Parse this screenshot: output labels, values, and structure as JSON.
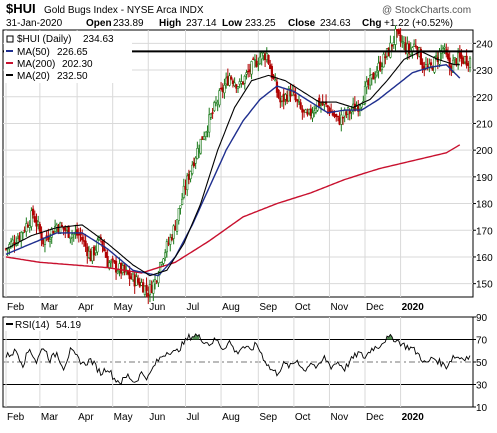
{
  "chart_data": {
    "type": "candlestick",
    "header": {
      "symbol": "$HUI",
      "name": "Gold Bugs Index - NYSE Arca INDX",
      "date": "31-Jan-2020",
      "open_label": "Open",
      "open": "233.89",
      "high_label": "High",
      "high": "237.14",
      "low_label": "Low",
      "low": "233.25",
      "close_label": "Close",
      "close": "234.63",
      "chg_label": "Chg",
      "chg": "+1.22 (+0.52%)",
      "credit": "@ StockCharts.com"
    },
    "legend": [
      {
        "label": "$HUI (Daily)",
        "value": "234.63",
        "color": "#000000",
        "marker": "box"
      },
      {
        "label": "MA(50)",
        "value": "226.65",
        "color": "#1f2f8f",
        "marker": "line"
      },
      {
        "label": "MA(200)",
        "value": "202.30",
        "color": "#c8102e",
        "marker": "line"
      },
      {
        "label": "MA(20)",
        "value": "232.50",
        "color": "#000000",
        "marker": "line"
      }
    ],
    "colors": {
      "up": "#1a7a1a",
      "down": "#b00000",
      "ma50": "#1f2f8f",
      "ma200": "#c8102e",
      "ma20": "#000000",
      "grid": "#d9d9d9",
      "rsi_fill": "#3a7d3a"
    },
    "price_axis": {
      "min": 145,
      "max": 245,
      "ticks": [
        150,
        160,
        170,
        180,
        190,
        200,
        210,
        220,
        230,
        240
      ]
    },
    "resistance_level": 237,
    "x_axis": {
      "total_days": 275,
      "months": [
        {
          "label": "Feb",
          "day": 0
        },
        {
          "label": "Mar",
          "day": 20
        },
        {
          "label": "Apr",
          "day": 42
        },
        {
          "label": "May",
          "day": 63
        },
        {
          "label": "Jun",
          "day": 84
        },
        {
          "label": "Jul",
          "day": 106
        },
        {
          "label": "Aug",
          "day": 127
        },
        {
          "label": "Sep",
          "day": 149
        },
        {
          "label": "Oct",
          "day": 170
        },
        {
          "label": "Nov",
          "day": 191
        },
        {
          "label": "Dec",
          "day": 212
        },
        {
          "label": "2020",
          "day": 233,
          "bold": true
        }
      ]
    },
    "close_path": [
      [
        0,
        163
      ],
      [
        8,
        168
      ],
      [
        16,
        176
      ],
      [
        22,
        166
      ],
      [
        30,
        172
      ],
      [
        38,
        169
      ],
      [
        44,
        168
      ],
      [
        50,
        160
      ],
      [
        56,
        167
      ],
      [
        60,
        158
      ],
      [
        68,
        155
      ],
      [
        74,
        152
      ],
      [
        80,
        150
      ],
      [
        84,
        147
      ],
      [
        88,
        151
      ],
      [
        92,
        160
      ],
      [
        96,
        165
      ],
      [
        100,
        172
      ],
      [
        104,
        182
      ],
      [
        110,
        195
      ],
      [
        116,
        205
      ],
      [
        120,
        211
      ],
      [
        126,
        220
      ],
      [
        132,
        228
      ],
      [
        138,
        224
      ],
      [
        144,
        230
      ],
      [
        150,
        235
      ],
      [
        154,
        236
      ],
      [
        158,
        226
      ],
      [
        162,
        218
      ],
      [
        168,
        222
      ],
      [
        174,
        215
      ],
      [
        178,
        212
      ],
      [
        184,
        218
      ],
      [
        190,
        216
      ],
      [
        196,
        211
      ],
      [
        202,
        214
      ],
      [
        208,
        217
      ],
      [
        212,
        222
      ],
      [
        218,
        229
      ],
      [
        226,
        237
      ],
      [
        230,
        243
      ],
      [
        234,
        240
      ],
      [
        238,
        237
      ],
      [
        242,
        240
      ],
      [
        246,
        232
      ],
      [
        250,
        230
      ],
      [
        254,
        234
      ],
      [
        258,
        238
      ],
      [
        262,
        231
      ],
      [
        266,
        234
      ],
      [
        268,
        234
      ]
    ],
    "ma50_path": [
      [
        0,
        161
      ],
      [
        15,
        165
      ],
      [
        30,
        169
      ],
      [
        45,
        169
      ],
      [
        60,
        163
      ],
      [
        75,
        155
      ],
      [
        90,
        153
      ],
      [
        100,
        160
      ],
      [
        110,
        172
      ],
      [
        120,
        186
      ],
      [
        130,
        200
      ],
      [
        140,
        211
      ],
      [
        150,
        219
      ],
      [
        160,
        224
      ],
      [
        170,
        222
      ],
      [
        180,
        218
      ],
      [
        190,
        214
      ],
      [
        200,
        215
      ],
      [
        210,
        215
      ],
      [
        220,
        219
      ],
      [
        230,
        224
      ],
      [
        240,
        229
      ],
      [
        250,
        231
      ],
      [
        260,
        232
      ],
      [
        268,
        227
      ]
    ],
    "ma200_path": [
      [
        0,
        160
      ],
      [
        20,
        158
      ],
      [
        40,
        157
      ],
      [
        60,
        156
      ],
      [
        80,
        154
      ],
      [
        100,
        158
      ],
      [
        120,
        166
      ],
      [
        140,
        175
      ],
      [
        160,
        180
      ],
      [
        180,
        184
      ],
      [
        200,
        189
      ],
      [
        220,
        193
      ],
      [
        240,
        196
      ],
      [
        260,
        199
      ],
      [
        268,
        202
      ]
    ],
    "ma20_path": [
      [
        0,
        163
      ],
      [
        15,
        168
      ],
      [
        30,
        171
      ],
      [
        45,
        172
      ],
      [
        60,
        165
      ],
      [
        75,
        157
      ],
      [
        85,
        153
      ],
      [
        95,
        155
      ],
      [
        105,
        165
      ],
      [
        115,
        180
      ],
      [
        125,
        200
      ],
      [
        135,
        216
      ],
      [
        145,
        226
      ],
      [
        155,
        228
      ],
      [
        165,
        226
      ],
      [
        175,
        222
      ],
      [
        185,
        218
      ],
      [
        195,
        218
      ],
      [
        205,
        216
      ],
      [
        215,
        219
      ],
      [
        225,
        226
      ],
      [
        235,
        234
      ],
      [
        245,
        237
      ],
      [
        255,
        234
      ],
      [
        265,
        232
      ],
      [
        268,
        232
      ]
    ],
    "rsi": {
      "label": "RSI(14)",
      "value": "54.19",
      "min": 10,
      "max": 90,
      "ticks": [
        10,
        30,
        50,
        70,
        90
      ],
      "overbought": 70,
      "oversold": 30,
      "mid": 50,
      "path": [
        [
          0,
          55
        ],
        [
          6,
          60
        ],
        [
          10,
          48
        ],
        [
          14,
          62
        ],
        [
          18,
          50
        ],
        [
          22,
          64
        ],
        [
          26,
          52
        ],
        [
          30,
          58
        ],
        [
          34,
          45
        ],
        [
          38,
          60
        ],
        [
          42,
          54
        ],
        [
          46,
          48
        ],
        [
          50,
          52
        ],
        [
          56,
          40
        ],
        [
          60,
          45
        ],
        [
          64,
          35
        ],
        [
          68,
          32
        ],
        [
          72,
          38
        ],
        [
          76,
          32
        ],
        [
          80,
          40
        ],
        [
          84,
          36
        ],
        [
          88,
          48
        ],
        [
          92,
          55
        ],
        [
          96,
          60
        ],
        [
          100,
          58
        ],
        [
          104,
          65
        ],
        [
          108,
          72
        ],
        [
          112,
          74
        ],
        [
          116,
          70
        ],
        [
          120,
          66
        ],
        [
          124,
          70
        ],
        [
          128,
          62
        ],
        [
          132,
          68
        ],
        [
          136,
          58
        ],
        [
          140,
          64
        ],
        [
          144,
          60
        ],
        [
          148,
          66
        ],
        [
          152,
          54
        ],
        [
          156,
          44
        ],
        [
          160,
          40
        ],
        [
          164,
          48
        ],
        [
          168,
          46
        ],
        [
          172,
          52
        ],
        [
          176,
          42
        ],
        [
          180,
          50
        ],
        [
          184,
          44
        ],
        [
          188,
          54
        ],
        [
          192,
          46
        ],
        [
          196,
          50
        ],
        [
          200,
          44
        ],
        [
          204,
          52
        ],
        [
          208,
          58
        ],
        [
          212,
          54
        ],
        [
          216,
          62
        ],
        [
          220,
          64
        ],
        [
          224,
          70
        ],
        [
          228,
          72
        ],
        [
          232,
          68
        ],
        [
          236,
          64
        ],
        [
          240,
          62
        ],
        [
          244,
          56
        ],
        [
          248,
          48
        ],
        [
          252,
          54
        ],
        [
          256,
          50
        ],
        [
          260,
          46
        ],
        [
          264,
          55
        ],
        [
          268,
          54
        ]
      ]
    }
  }
}
